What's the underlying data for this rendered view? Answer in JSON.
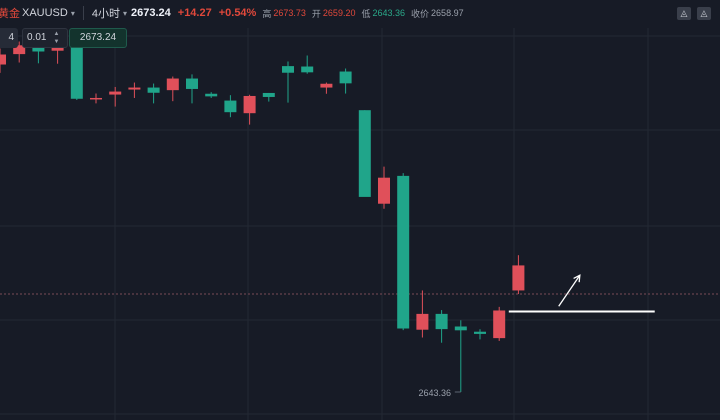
{
  "toolbar": {
    "symbol_prefix": "黄金",
    "symbol": "XAUUSD",
    "interval": "4小时",
    "last_price": "2673.24",
    "change": "+14.27",
    "change_pct": "+0.54%",
    "high_label": "高",
    "high_value": "2673.73",
    "open_label": "开",
    "open_value": "2659.20",
    "low_label": "低",
    "low_value": "2643.36",
    "close_label": "收价",
    "close_value": "2658.97"
  },
  "order_panel": {
    "left_value": "4",
    "quantity": "0.01",
    "price_value": "2673.24"
  },
  "chart_data": {
    "type": "candlestick",
    "low_annotation": "2643.36",
    "colors": {
      "up": "#e0505a",
      "down": "#20a58a",
      "background": "#171b26",
      "grid": "#232834"
    },
    "candles": [
      {
        "o": 2660.0,
        "h": 2668.0,
        "l": 2655.8,
        "c": 2665.0
      },
      {
        "o": 2665.2,
        "h": 2671.5,
        "l": 2661.0,
        "c": 2669.6
      },
      {
        "o": 2669.6,
        "h": 2671.1,
        "l": 2660.6,
        "c": 2666.5
      },
      {
        "o": 2666.9,
        "h": 2675.0,
        "l": 2660.4,
        "c": 2671.2
      },
      {
        "o": 2670.9,
        "h": 2671.1,
        "l": 2642.3,
        "c": 2642.9
      },
      {
        "o": 2643.1,
        "h": 2645.5,
        "l": 2640.6,
        "c": 2643.3
      },
      {
        "o": 2645.0,
        "h": 2648.8,
        "l": 2639.0,
        "c": 2646.5
      },
      {
        "o": 2647.5,
        "h": 2651.0,
        "l": 2643.3,
        "c": 2648.5
      },
      {
        "o": 2648.5,
        "h": 2650.5,
        "l": 2640.6,
        "c": 2645.9
      },
      {
        "o": 2647.2,
        "h": 2654.0,
        "l": 2641.7,
        "c": 2653.0
      },
      {
        "o": 2653.0,
        "h": 2655.1,
        "l": 2640.6,
        "c": 2647.8
      },
      {
        "o": 2645.4,
        "h": 2646.2,
        "l": 2643.3,
        "c": 2644.1
      },
      {
        "o": 2642.0,
        "h": 2644.7,
        "l": 2633.7,
        "c": 2636.2
      },
      {
        "o": 2635.7,
        "h": 2644.9,
        "l": 2630.0,
        "c": 2644.3
      },
      {
        "o": 2645.8,
        "h": 2645.8,
        "l": 2641.5,
        "c": 2643.8
      },
      {
        "o": 2659.2,
        "h": 2661.5,
        "l": 2641.0,
        "c": 2655.9
      },
      {
        "o": 2659.0,
        "h": 2664.5,
        "l": 2655.4,
        "c": 2656.1
      },
      {
        "o": 2648.5,
        "h": 2651.0,
        "l": 2645.4,
        "c": 2650.4
      },
      {
        "o": 2656.5,
        "h": 2658.0,
        "l": 2645.5,
        "c": 2650.6
      },
      {
        "o": 2637.2,
        "h": 2637.2,
        "l": 2594.4,
        "c": 2593.9
      },
      {
        "o": 2590.5,
        "h": 2609.0,
        "l": 2588.0,
        "c": 2603.5
      },
      {
        "o": 2604.4,
        "h": 2605.8,
        "l": 2527.4,
        "c": 2528.2
      },
      {
        "o": 2527.6,
        "h": 2547.2,
        "l": 2523.7,
        "c": 2535.5
      },
      {
        "o": 2535.5,
        "h": 2537.4,
        "l": 2521.1,
        "c": 2527.9
      },
      {
        "o": 2529.2,
        "h": 2532.3,
        "l": 2496.5,
        "c": 2527.3
      },
      {
        "o": 2526.6,
        "h": 2527.8,
        "l": 2522.8,
        "c": 2525.5
      },
      {
        "o": 2523.4,
        "h": 2539.0,
        "l": 2522.0,
        "c": 2537.2
      },
      {
        "o": 2547.2,
        "h": 2564.8,
        "l": 2545.4,
        "c": 2559.7
      }
    ],
    "price_scale": {
      "ref_price": 2673.24,
      "ref_y": 38,
      "low_price": 2496.5,
      "low_y": 392
    },
    "overlays": {
      "horizontal_line": {
        "price": 2536.7,
        "start_index": 26.5,
        "end_index": 34.1,
        "color": "#ffffff"
      },
      "arrow": {
        "from_index": 29.1,
        "from_price": 2539.3,
        "to_index": 30.2,
        "to_price": 2554.8,
        "color": "#ffffff"
      },
      "last_price_dotted": {
        "price": 2545.4,
        "color": "#7a4b57"
      }
    }
  }
}
